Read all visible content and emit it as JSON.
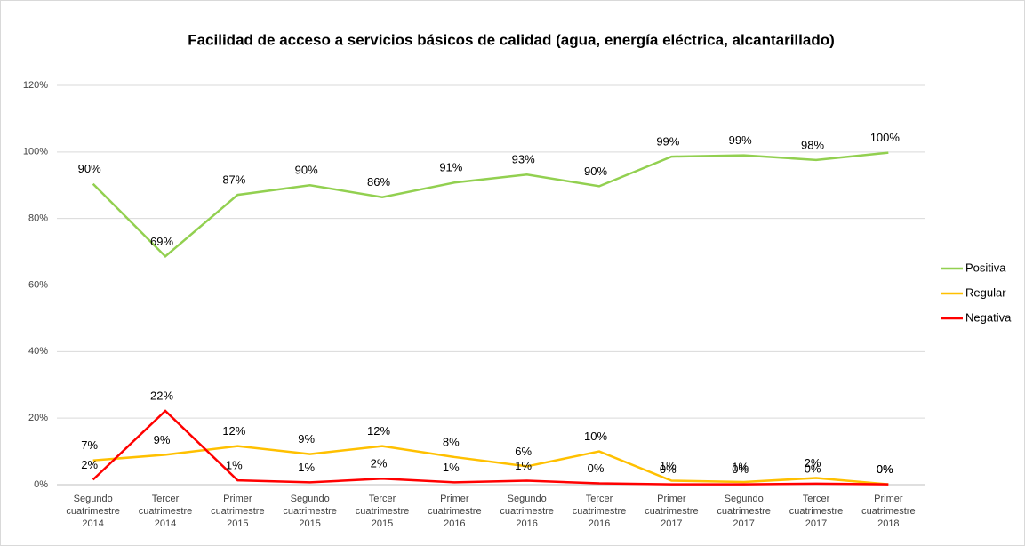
{
  "chart_data": {
    "type": "line",
    "title": "Facilidad de acceso a servicios básicos de calidad (agua, energía eléctrica, alcantarillado)",
    "categories": [
      "Segundo cuatrimestre 2014",
      "Tercer cuatrimestre 2014",
      "Primer cuatrimestre 2015",
      "Segundo cuatrimestre 2015",
      "Tercer cuatrimestre 2015",
      "Primer cuatrimestre 2016",
      "Segundo cuatrimestre 2016",
      "Tercer cuatrimestre 2016",
      "Primer cuatrimestre 2017",
      "Segundo cuatrimestre 2017",
      "Tercer cuatrimestre 2017",
      "Primer cuatrimestre 2018"
    ],
    "series": [
      {
        "name": "Positiva",
        "color": "#92d050",
        "values": [
          90.4,
          68.6,
          87.1,
          90.0,
          86.4,
          90.8,
          93.2,
          89.7,
          98.6,
          99.0,
          97.6,
          99.8
        ],
        "value_labels": [
          "90%",
          "69%",
          "87%",
          "90%",
          "86%",
          "91%",
          "93%",
          "90%",
          "99%",
          "99%",
          "98%",
          "100%"
        ]
      },
      {
        "name": "Regular",
        "color": "#ffc000",
        "values": [
          7.3,
          9.0,
          11.6,
          9.2,
          11.6,
          8.3,
          5.5,
          10.0,
          1.2,
          0.8,
          2.0,
          0.1
        ],
        "value_labels": [
          "7%",
          "9%",
          "12%",
          "9%",
          "12%",
          "8%",
          "6%",
          "10%",
          "1%",
          "1%",
          "2%",
          "0%"
        ]
      },
      {
        "name": "Negativa",
        "color": "#ff0000",
        "values": [
          1.5,
          22.2,
          1.3,
          0.7,
          1.8,
          0.7,
          1.2,
          0.4,
          0.1,
          0.1,
          0.3,
          0.1
        ],
        "value_labels": [
          "2%",
          "22%",
          "1%",
          "1%",
          "2%",
          "1%",
          "1%",
          "0%",
          "0%",
          "0%",
          "0%",
          "0%"
        ]
      }
    ],
    "ylim": [
      0,
      120
    ],
    "yticks": [
      {
        "value": 0,
        "label": "0%"
      },
      {
        "value": 20,
        "label": "20%"
      },
      {
        "value": 40,
        "label": "40%"
      },
      {
        "value": 60,
        "label": "60%"
      },
      {
        "value": 80,
        "label": "80%"
      },
      {
        "value": 100,
        "label": "100%"
      },
      {
        "value": 120,
        "label": "120%"
      }
    ],
    "grid": true,
    "legend": "right"
  }
}
